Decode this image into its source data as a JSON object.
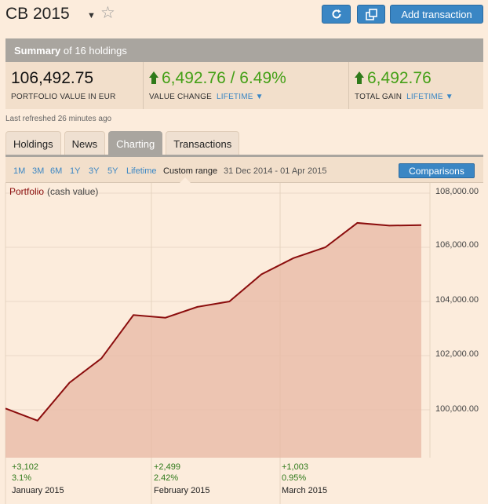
{
  "header": {
    "title": "CB 2015",
    "add_transaction_label": "Add transaction",
    "icons": {
      "refresh": "refresh-icon",
      "popout": "popout-icon",
      "star": "star-icon",
      "caret": "caret-down-icon"
    }
  },
  "summary": {
    "label_bold": "Summary",
    "label_rest": "of 16 holdings"
  },
  "stats": {
    "portfolio_value": "106,492.75",
    "portfolio_value_label": "PORTFOLIO VALUE IN EUR",
    "value_change": "6,492.76 / 6.49%",
    "value_change_label": "VALUE CHANGE",
    "total_gain": "6,492.76",
    "total_gain_label": "TOTAL GAIN",
    "lifetime_label": "LIFETIME"
  },
  "last_refreshed": "Last refreshed 26 minutes ago",
  "tabs": [
    "Holdings",
    "News",
    "Charting",
    "Transactions"
  ],
  "active_tab": "Charting",
  "ranges": [
    "1M",
    "3M",
    "6M",
    "1Y",
    "3Y",
    "5Y",
    "Lifetime",
    "Custom range"
  ],
  "active_range": "Custom range",
  "date_range": "31 Dec 2014 - 01 Apr 2015",
  "comparisons_label": "Comparisons",
  "colors": {
    "accent_blue": "#3a86c4",
    "gain_green": "#44a017",
    "line": "#8b0d0d",
    "area": "#e8b8a4"
  },
  "chart_data": {
    "type": "area",
    "series": [
      {
        "name": "Portfolio",
        "subtitle": "(cash value)",
        "values": [
          100050,
          99600,
          101000,
          101900,
          103500,
          103400,
          103800,
          104000,
          105000,
          105600,
          106000,
          106900,
          106800,
          106820
        ]
      }
    ],
    "ylim": [
      98000,
      108000
    ],
    "yticks": [
      "108,000.00",
      "106,000.00",
      "104,000.00",
      "102,000.00",
      "100,000.00"
    ],
    "periods": [
      {
        "change": "+3,102",
        "pct": "3.1%",
        "month": "January 2015"
      },
      {
        "change": "+2,499",
        "pct": "2.42%",
        "month": "February 2015"
      },
      {
        "change": "+1,003",
        "pct": "0.95%",
        "month": "March 2015"
      }
    ]
  }
}
